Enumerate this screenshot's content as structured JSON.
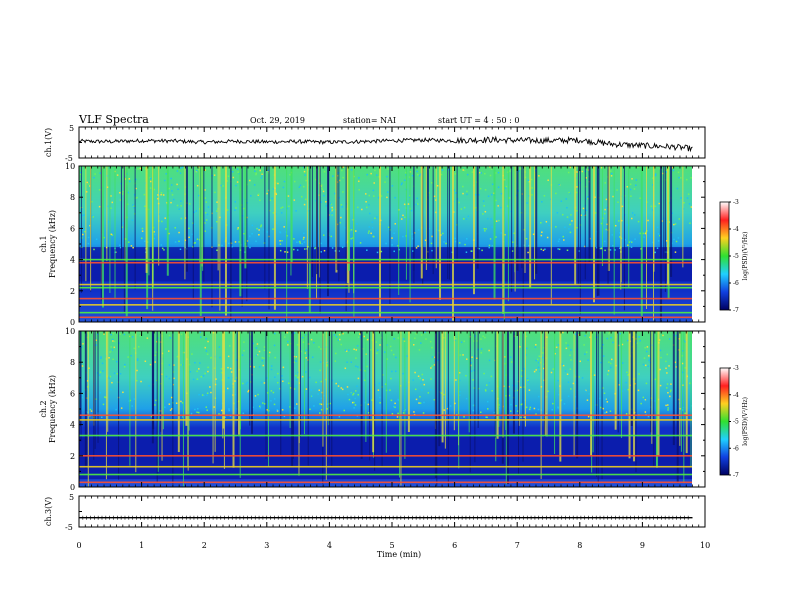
{
  "header": {
    "title": "VLF Spectra",
    "date": "Oct. 29, 2019",
    "station": "station= NAI",
    "start": "start  UT =   4 : 50 : 0"
  },
  "colorbar": {
    "label": "log(PSD)(V²/Hz)",
    "ticks": [
      "-3",
      "-4",
      "-5",
      "-6",
      "-7"
    ],
    "colors": [
      "#ffffff",
      "#ff2020",
      "#ffd020",
      "#30e030",
      "#20d0ff",
      "#1040e0",
      "#000060"
    ]
  },
  "chart_data": [
    {
      "type": "line",
      "panel": "ch.1 waveform",
      "ylabel": "ch.1(V)",
      "yticks": [
        "5",
        "-5"
      ],
      "ylim": [
        -5,
        5
      ],
      "xlim": [
        0,
        10
      ],
      "x": [
        0,
        0.5,
        1,
        1.5,
        2,
        2.5,
        3,
        3.5,
        4,
        4.5,
        5,
        5.5,
        6,
        6.5,
        7,
        7.5,
        8,
        8.5,
        9,
        9.5,
        9.8
      ],
      "y": [
        0.4,
        0.3,
        0.6,
        0.5,
        0.1,
        0.4,
        0.2,
        0.3,
        0.1,
        0.3,
        0.6,
        0.8,
        0.6,
        0.9,
        0.7,
        0.6,
        0.8,
        -0.5,
        -1.0,
        -1.4,
        -2.0
      ]
    },
    {
      "type": "heatmap",
      "panel": "ch.1 spectrogram",
      "ylabel": "ch.1",
      "ylabel2": "Frequency (kHz)",
      "yticks": [
        "0",
        "2",
        "4",
        "6",
        "8",
        "10"
      ],
      "ylim": [
        0,
        10
      ],
      "xlim": [
        0,
        9.8
      ],
      "zlim": [
        -7,
        -3
      ],
      "freq_bands_khz": [
        0.3,
        0.6,
        1.1,
        1.5,
        2.2,
        2.4,
        3.8,
        4.0
      ],
      "quiet_band_khz": [
        2.6,
        4.8
      ]
    },
    {
      "type": "heatmap",
      "panel": "ch.2 spectrogram",
      "ylabel": "ch.2",
      "ylabel2": "Frequency (kHz)",
      "yticks": [
        "0",
        "2",
        "4",
        "6",
        "8",
        "10"
      ],
      "ylim": [
        0,
        10
      ],
      "xlim": [
        0,
        9.8
      ],
      "zlim": [
        -7,
        -3
      ],
      "freq_bands_khz": [
        0.3,
        0.8,
        1.3,
        2.0,
        3.3,
        4.3,
        4.6
      ],
      "quiet_band_khz": [
        0.5,
        3.2
      ]
    },
    {
      "type": "line",
      "panel": "ch.3 waveform",
      "ylabel": "ch.3(V)",
      "yticks": [
        "5",
        "-5"
      ],
      "ylim": [
        -5,
        5
      ],
      "xlim": [
        0,
        10
      ],
      "x": [
        0,
        9.8
      ],
      "y": [
        -2.0,
        -2.0
      ]
    }
  ],
  "xaxis": {
    "label": "Time (min)",
    "ticks": [
      "0",
      "1",
      "2",
      "3",
      "4",
      "5",
      "6",
      "7",
      "8",
      "9",
      "10"
    ]
  }
}
